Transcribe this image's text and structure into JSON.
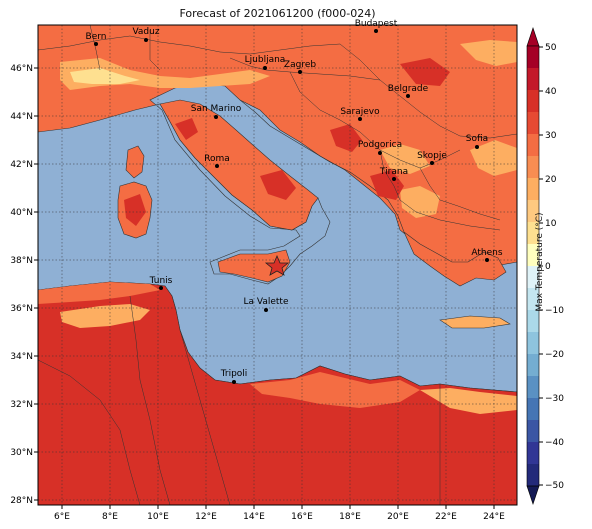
{
  "title": "Forecast of 2021061200 (f000-024)",
  "colorbar": {
    "label": "Max Temperature (°C)",
    "ticks": [
      "50",
      "40",
      "30",
      "20",
      "10",
      "0",
      "−10",
      "−20",
      "−30",
      "−40",
      "−50"
    ],
    "colors": [
      "#313695",
      "#4575b4",
      "#74add1",
      "#abd9e9",
      "#e0f3f8",
      "#ffffbf",
      "#fee090",
      "#fdae61",
      "#f46d43",
      "#d73027",
      "#a50026"
    ]
  },
  "axes": {
    "x_ticks": [
      "6°E",
      "8°E",
      "10°E",
      "12°E",
      "14°E",
      "16°E",
      "18°E",
      "20°E",
      "22°E",
      "24°E"
    ],
    "y_ticks": [
      "46°N",
      "44°N",
      "42°N",
      "40°N",
      "38°N",
      "36°N",
      "34°N",
      "32°N",
      "30°N",
      "28°N"
    ]
  },
  "cities": [
    {
      "name": "Bern"
    },
    {
      "name": "Vaduz"
    },
    {
      "name": "Budapest"
    },
    {
      "name": "Ljubljana"
    },
    {
      "name": "Zagreb"
    },
    {
      "name": "Belgrade"
    },
    {
      "name": "San Marino"
    },
    {
      "name": "Sarajevo"
    },
    {
      "name": "Sofia"
    },
    {
      "name": "Roma"
    },
    {
      "name": "Podgorica"
    },
    {
      "name": "Skopje"
    },
    {
      "name": "Tirana"
    },
    {
      "name": "Athens"
    },
    {
      "name": "Tunis"
    },
    {
      "name": "La Valette"
    },
    {
      "name": "Tripoli"
    }
  ],
  "colors": {
    "sea": "#8fb0d4",
    "land_warm": "#f46d43",
    "land_hot": "#d73027",
    "land_mild": "#fdae61",
    "land_cool": "#fee090"
  }
}
